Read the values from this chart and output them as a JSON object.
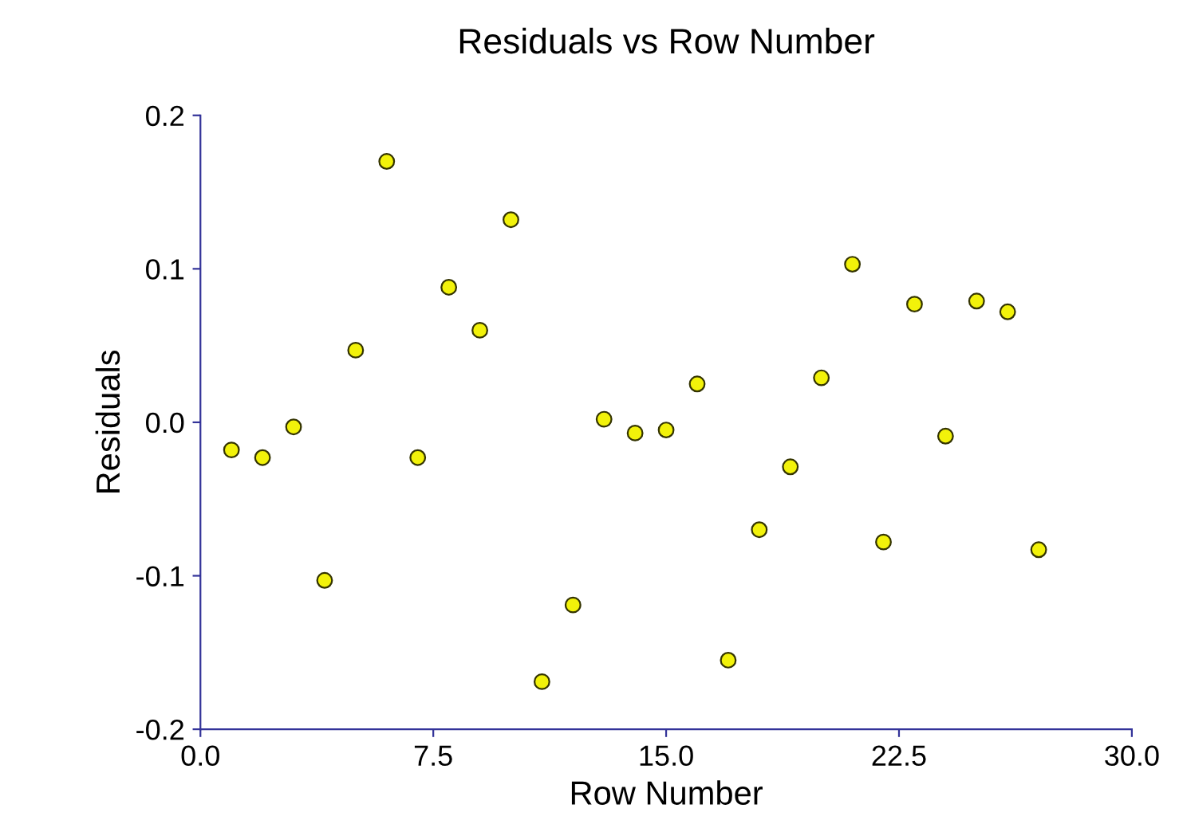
{
  "chart_data": {
    "type": "scatter",
    "title": "Residuals vs Row Number",
    "xlabel": "Row Number",
    "ylabel": "Residuals",
    "x": [
      1,
      2,
      3,
      4,
      5,
      6,
      7,
      8,
      9,
      10,
      11,
      12,
      13,
      14,
      15,
      16,
      17,
      18,
      19,
      20,
      21,
      22,
      23,
      24,
      25,
      26,
      27
    ],
    "series": [
      {
        "color": "#f2f20a",
        "values": [
          -0.018,
          -0.023,
          -0.003,
          -0.103,
          0.047,
          0.17,
          -0.023,
          0.088,
          0.06,
          0.132,
          -0.169,
          -0.119,
          0.002,
          -0.007,
          -0.005,
          0.025,
          -0.155,
          -0.07,
          -0.029,
          0.029,
          0.103,
          -0.078,
          0.077,
          -0.009,
          0.079,
          0.072,
          -0.083
        ]
      }
    ],
    "xlim": [
      0,
      30
    ],
    "xticks": [
      {
        "value": 0,
        "label": "0.0"
      },
      {
        "value": 7.5,
        "label": "7.5"
      },
      {
        "value": 15,
        "label": "15.0"
      },
      {
        "value": 22.5,
        "label": "22.5"
      },
      {
        "value": 30,
        "label": "30.0"
      }
    ],
    "ylim": [
      -0.2,
      0.2
    ],
    "yticks": [
      {
        "value": -0.2,
        "label": "-0.2"
      },
      {
        "value": -0.1,
        "label": "-0.1"
      },
      {
        "value": 0,
        "label": "0.0"
      },
      {
        "value": 0.1,
        "label": "0.1"
      },
      {
        "value": 0.2,
        "label": "0.2"
      }
    ],
    "grid": false,
    "legend": false,
    "marker": "circle"
  }
}
